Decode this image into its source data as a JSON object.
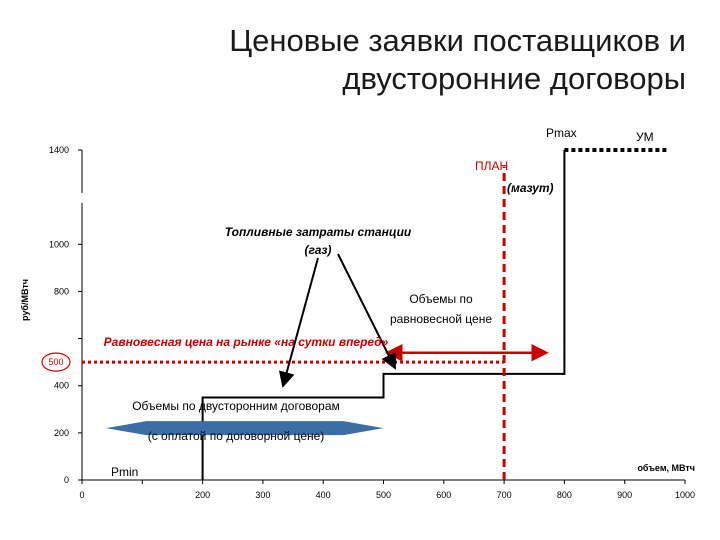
{
  "title": {
    "line1": "Ценовые заявки поставщиков и",
    "line2": "двусторонние договоры"
  },
  "colors": {
    "equilibrium": "#cc0000",
    "contracts_arrow": "#3a6ea5",
    "curve": "#000000",
    "um_dots": "#000000"
  },
  "chart_data": {
    "type": "line",
    "step": true,
    "xlabel": "объем, МВтч",
    "ylabel": "руб/МВтч",
    "xlim": [
      0,
      1000
    ],
    "ylim": [
      0,
      1400
    ],
    "x_ticks": [
      0,
      100,
      200,
      300,
      400,
      500,
      600,
      700,
      800,
      900,
      1000
    ],
    "x_tick_labels": [
      "0",
      "",
      "200",
      "300",
      "400",
      "500",
      "600",
      "700",
      "800",
      "900",
      "1000"
    ],
    "y_ticks": [
      0,
      200,
      400,
      600,
      800,
      1000,
      1200,
      1400
    ],
    "y_tick_labels": [
      "0",
      "200",
      "400",
      "",
      "800",
      "1000",
      "",
      "1400"
    ],
    "series": [
      {
        "x": [
          200,
          200,
          500,
          500,
          800,
          800
        ],
        "y": [
          0,
          350,
          350,
          450,
          450,
          1400
        ]
      }
    ],
    "equilibrium_price": 500,
    "equilibrium_label": "500",
    "plan_volume": 700,
    "pmax_volume": 800,
    "pmax_price": 1400,
    "um_volume_end": 970,
    "contract_volume_end": 500,
    "annotations": {
      "pmax": "Pmax",
      "um": "УМ",
      "plan": "ПЛАН",
      "mazut": "(мазут)",
      "fuel_line1": "Топливные затраты станции",
      "fuel_line2": "(газ)",
      "eq_vol_line1": "Объемы по",
      "eq_vol_line2": "равновесной цене",
      "eq_price": "Равновесная цена на рынке «на сутки вперед»",
      "contracts_line1": "Объемы по двусторонним договорам",
      "contracts_line2": "(с оплатой по договорной цене)",
      "pmin": "Pmin"
    }
  }
}
